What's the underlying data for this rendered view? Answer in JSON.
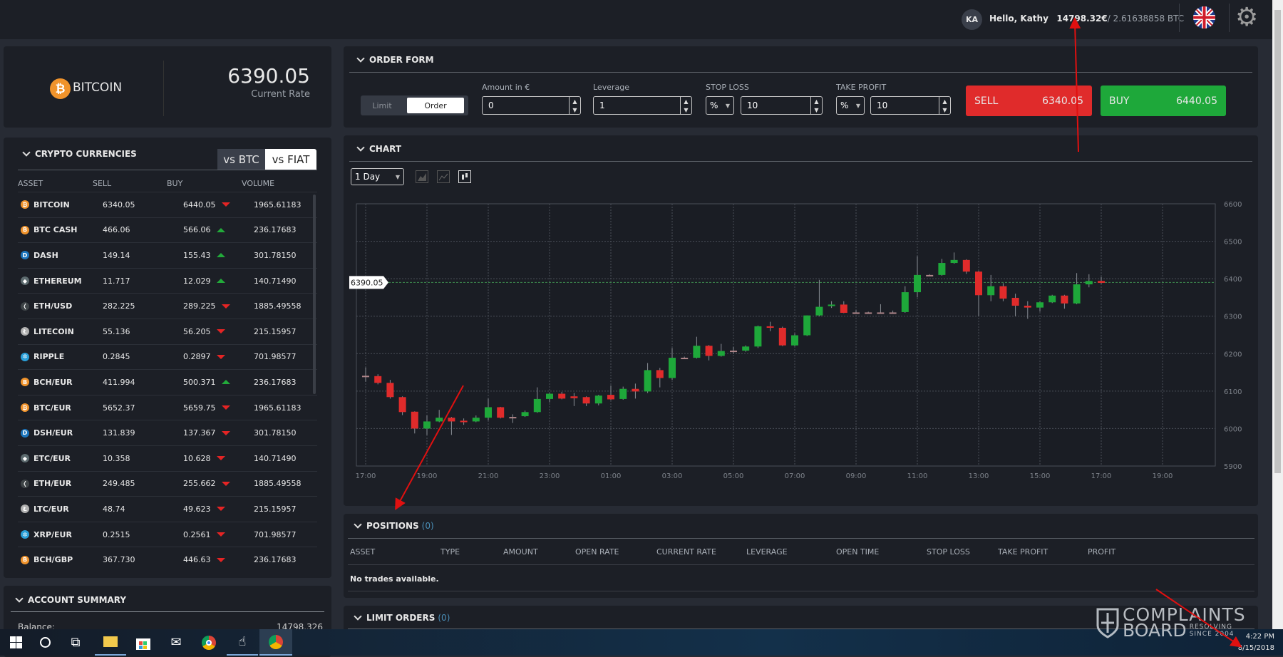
{
  "header": {
    "avatar_initials": "KA",
    "greeting": "Hello, Kathy",
    "balance_eur": "14798.32€",
    "balance_btc": "/ 2.61638858 BTC",
    "flag_icon": "uk-flag-icon",
    "settings_icon": "gear-icon"
  },
  "asset": {
    "name": "BITCOIN",
    "rate": "6390.05",
    "rate_label": "Current Rate"
  },
  "crypto": {
    "title": "CRYPTO CURRENCIES",
    "toggle": [
      "vs BTC",
      "vs FIAT"
    ],
    "active_toggle": "vs FIAT",
    "columns": [
      "ASSET",
      "SELL",
      "BUY",
      "VOLUME"
    ],
    "rows": [
      {
        "asset": "BITCOIN",
        "sell": "6340.05",
        "buy": "6440.05",
        "trend": "down",
        "volume": "1965.61183",
        "icon": "bitcoin"
      },
      {
        "asset": "BTC CASH",
        "sell": "466.06",
        "buy": "566.06",
        "trend": "up",
        "volume": "236.17683",
        "icon": "bitcoin-cash"
      },
      {
        "asset": "DASH",
        "sell": "149.14",
        "buy": "155.43",
        "trend": "up",
        "volume": "301.78150",
        "icon": "dash"
      },
      {
        "asset": "ETHEREUM",
        "sell": "11.717",
        "buy": "12.029",
        "trend": "up",
        "volume": "140.71490",
        "icon": "ethereum"
      },
      {
        "asset": "ETH/USD",
        "sell": "282.225",
        "buy": "289.225",
        "trend": "down",
        "volume": "1885.49558",
        "icon": "ethereum-classic"
      },
      {
        "asset": "LITECOIN",
        "sell": "55.136",
        "buy": "56.205",
        "trend": "down",
        "volume": "215.15957",
        "icon": "litecoin"
      },
      {
        "asset": "RIPPLE",
        "sell": "0.2845",
        "buy": "0.2897",
        "trend": "down",
        "volume": "701.98577",
        "icon": "ripple"
      },
      {
        "asset": "BCH/EUR",
        "sell": "411.994",
        "buy": "500.371",
        "trend": "up",
        "volume": "236.17683",
        "icon": "bitcoin-cash"
      },
      {
        "asset": "BTC/EUR",
        "sell": "5652.37",
        "buy": "5659.75",
        "trend": "down",
        "volume": "1965.61183",
        "icon": "bitcoin"
      },
      {
        "asset": "DSH/EUR",
        "sell": "131.839",
        "buy": "137.367",
        "trend": "down",
        "volume": "301.78150",
        "icon": "dash"
      },
      {
        "asset": "ETC/EUR",
        "sell": "10.358",
        "buy": "10.628",
        "trend": "down",
        "volume": "140.71490",
        "icon": "ethereum"
      },
      {
        "asset": "ETH/EUR",
        "sell": "249.485",
        "buy": "255.662",
        "trend": "down",
        "volume": "1885.49558",
        "icon": "ethereum-classic"
      },
      {
        "asset": "LTC/EUR",
        "sell": "48.74",
        "buy": "49.623",
        "trend": "down",
        "volume": "215.15957",
        "icon": "litecoin"
      },
      {
        "asset": "XRP/EUR",
        "sell": "0.2515",
        "buy": "0.2561",
        "trend": "down",
        "volume": "701.98577",
        "icon": "ripple"
      },
      {
        "asset": "BCH/GBP",
        "sell": "367.730",
        "buy": "446.63",
        "trend": "down",
        "volume": "236.17683",
        "icon": "bitcoin-cash"
      }
    ]
  },
  "account": {
    "title": "ACCOUNT SUMMARY",
    "balance_label": "Balance:",
    "balance_value": "14798.326"
  },
  "order_form": {
    "title": "ORDER FORM",
    "mode": [
      "Limit",
      "Order"
    ],
    "active_mode": "Order",
    "amount_label": "Amount in €",
    "amount": "0",
    "leverage_label": "Leverage",
    "leverage": "1",
    "stop_loss_label": "STOP LOSS",
    "stop_loss_unit": "%",
    "stop_loss": "10",
    "take_profit_label": "TAKE PROFIT",
    "take_profit_unit": "%",
    "take_profit": "10",
    "sell_label": "SELL",
    "sell_price": "6340.05",
    "buy_label": "BUY",
    "buy_price": "6440.05",
    "colors": {
      "sell": "#e02b2b",
      "buy": "#1ea83a"
    }
  },
  "chart": {
    "title": "CHART",
    "interval": "1 Day",
    "tool_icons": [
      "area-chart-icon",
      "line-chart-icon",
      "candlestick-chart-icon"
    ]
  },
  "chart_data": {
    "type": "candlestick",
    "ylim": [
      5900,
      6600
    ],
    "yticks": [
      5900,
      6000,
      6100,
      6200,
      6300,
      6400,
      6500,
      6600
    ],
    "xticks": [
      "17:00",
      "19:00",
      "21:00",
      "23:00",
      "01:00",
      "03:00",
      "05:00",
      "07:00",
      "09:00",
      "11:00",
      "13:00",
      "15:00",
      "17:00",
      "19:00"
    ],
    "current_price": 6390.05,
    "current_price_label": "6390.05",
    "grid": true,
    "colors": {
      "up": "#1ea83a",
      "down": "#e02b2b",
      "flat": "#b0868a",
      "price_line": "#3f8f4f"
    },
    "candles_fields": [
      "time",
      "open",
      "high",
      "low",
      "close"
    ],
    "candles": [
      [
        "17:00",
        6141,
        6163,
        6125,
        6141
      ],
      [
        "17:24",
        6140,
        6145,
        6118,
        6122
      ],
      [
        "17:48",
        6122,
        6130,
        6080,
        6084
      ],
      [
        "18:12",
        6084,
        6086,
        6036,
        6044
      ],
      [
        "18:36",
        6045,
        6046,
        5987,
        6000
      ],
      [
        "19:00",
        6000,
        6035,
        5983,
        6019
      ],
      [
        "19:24",
        6019,
        6050,
        6017,
        6029
      ],
      [
        "19:48",
        6029,
        6031,
        5983,
        6019
      ],
      [
        "20:12",
        6021,
        6027,
        6010,
        6017
      ],
      [
        "20:36",
        6019,
        6035,
        6017,
        6029
      ],
      [
        "21:00",
        6029,
        6080,
        6022,
        6057
      ],
      [
        "21:24",
        6057,
        6058,
        6027,
        6029
      ],
      [
        "21:48",
        6031,
        6038,
        6015,
        6031
      ],
      [
        "22:12",
        6033,
        6048,
        6031,
        6044
      ],
      [
        "22:36",
        6044,
        6110,
        6042,
        6079
      ],
      [
        "23:00",
        6079,
        6095,
        6070,
        6093
      ],
      [
        "23:24",
        6093,
        6098,
        6078,
        6080
      ],
      [
        "23:48",
        6086,
        6095,
        6060,
        6081
      ],
      [
        "00:12",
        6084,
        6086,
        6060,
        6067
      ],
      [
        "00:36",
        6067,
        6090,
        6062,
        6088
      ],
      [
        "01:00",
        6090,
        6115,
        6076,
        6078
      ],
      [
        "01:24",
        6079,
        6112,
        6077,
        6106
      ],
      [
        "01:48",
        6106,
        6120,
        6080,
        6099
      ],
      [
        "02:12",
        6099,
        6175,
        6095,
        6156
      ],
      [
        "02:36",
        6156,
        6162,
        6110,
        6135
      ],
      [
        "03:00",
        6135,
        6215,
        6130,
        6189
      ],
      [
        "03:24",
        6189,
        6192,
        6186,
        6189
      ],
      [
        "03:48",
        6189,
        6245,
        6187,
        6221
      ],
      [
        "04:12",
        6221,
        6223,
        6182,
        6194
      ],
      [
        "04:36",
        6194,
        6226,
        6192,
        6207
      ],
      [
        "05:00",
        6208,
        6218,
        6200,
        6208
      ],
      [
        "05:24",
        6208,
        6222,
        6205,
        6219
      ],
      [
        "05:48",
        6219,
        6275,
        6215,
        6273
      ],
      [
        "06:12",
        6273,
        6285,
        6260,
        6269
      ],
      [
        "06:36",
        6269,
        6272,
        6220,
        6222
      ],
      [
        "07:00",
        6222,
        6254,
        6220,
        6249
      ],
      [
        "07:24",
        6249,
        6302,
        6247,
        6302
      ],
      [
        "07:48",
        6302,
        6397,
        6300,
        6325
      ],
      [
        "08:12",
        6327,
        6340,
        6322,
        6331
      ],
      [
        "08:36",
        6331,
        6340,
        6308,
        6309
      ],
      [
        "09:00",
        6310,
        6316,
        6309,
        6310
      ],
      [
        "09:24",
        6310,
        6312,
        6309,
        6310
      ],
      [
        "09:48",
        6310,
        6332,
        6309,
        6310
      ],
      [
        "10:12",
        6310,
        6315,
        6309,
        6310
      ],
      [
        "10:36",
        6311,
        6380,
        6309,
        6364
      ],
      [
        "11:00",
        6364,
        6460,
        6350,
        6410
      ],
      [
        "11:24",
        6410,
        6412,
        6408,
        6410
      ],
      [
        "11:48",
        6410,
        6453,
        6408,
        6442
      ],
      [
        "12:12",
        6442,
        6470,
        6440,
        6450
      ],
      [
        "12:36",
        6450,
        6452,
        6413,
        6419
      ],
      [
        "13:00",
        6419,
        6421,
        6300,
        6356
      ],
      [
        "13:24",
        6356,
        6410,
        6340,
        6380
      ],
      [
        "13:48",
        6380,
        6388,
        6340,
        6347
      ],
      [
        "14:12",
        6349,
        6360,
        6300,
        6328
      ],
      [
        "14:36",
        6328,
        6340,
        6293,
        6323
      ],
      [
        "15:00",
        6323,
        6339,
        6312,
        6337
      ],
      [
        "15:24",
        6337,
        6357,
        6335,
        6355
      ],
      [
        "15:48",
        6355,
        6357,
        6320,
        6334
      ],
      [
        "16:12",
        6334,
        6415,
        6332,
        6385
      ],
      [
        "16:36",
        6385,
        6412,
        6377,
        6394
      ],
      [
        "17:00",
        6394,
        6405,
        6387,
        6389
      ]
    ]
  },
  "positions": {
    "title": "POSITIONS",
    "count": "(0)",
    "columns": [
      "ASSET",
      "TYPE",
      "AMOUNT",
      "OPEN RATE",
      "CURRENT RATE",
      "LEVERAGE",
      "OPEN TIME",
      "STOP LOSS",
      "TAKE PROFIT",
      "PROFIT"
    ],
    "empty": "No trades available."
  },
  "limit_orders": {
    "title": "LIMIT ORDERS",
    "count": "(0)"
  },
  "watermark": {
    "line1": "COMPLAINTS",
    "line2": "BOARD",
    "tagline1": "RESOLVING",
    "tagline2": "SINCE 2004"
  },
  "taskbar": {
    "time": "4:22 PM",
    "date": "8/15/2018"
  }
}
